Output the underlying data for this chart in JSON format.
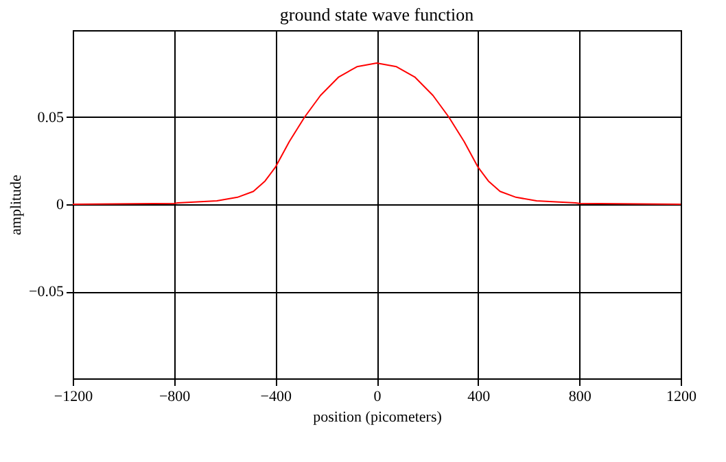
{
  "chart_data": {
    "type": "line",
    "title": "ground state wave function",
    "xlabel": "position (picometers)",
    "ylabel": "amplitude",
    "x": [
      -1200,
      -800,
      -785,
      -631,
      -550,
      -487,
      -441,
      -400,
      -345,
      -285,
      -222,
      -150,
      -78,
      0,
      78,
      150,
      222,
      285,
      345,
      400,
      441,
      487,
      550,
      631,
      785,
      800,
      1200
    ],
    "series": [
      {
        "color": "#ff0000",
        "values": [
          0,
          0.0005,
          0.0008,
          0.002,
          0.004,
          0.0074,
          0.0133,
          0.0213,
          0.036,
          0.05,
          0.0625,
          0.0731,
          0.079,
          0.0811,
          0.079,
          0.0731,
          0.0625,
          0.05,
          0.036,
          0.0213,
          0.0133,
          0.0074,
          0.004,
          0.002,
          0.0008,
          0.0005,
          0
        ]
      }
    ],
    "xlim": [
      -1200,
      1200
    ],
    "xticks": [
      -1200,
      -800,
      -400,
      0,
      400,
      800,
      1200
    ],
    "ylim": [
      -0.1,
      0.1
    ],
    "yticks": [
      -0.05,
      0,
      0.05
    ],
    "grid": true,
    "marker": "none",
    "line_style": "solid"
  }
}
